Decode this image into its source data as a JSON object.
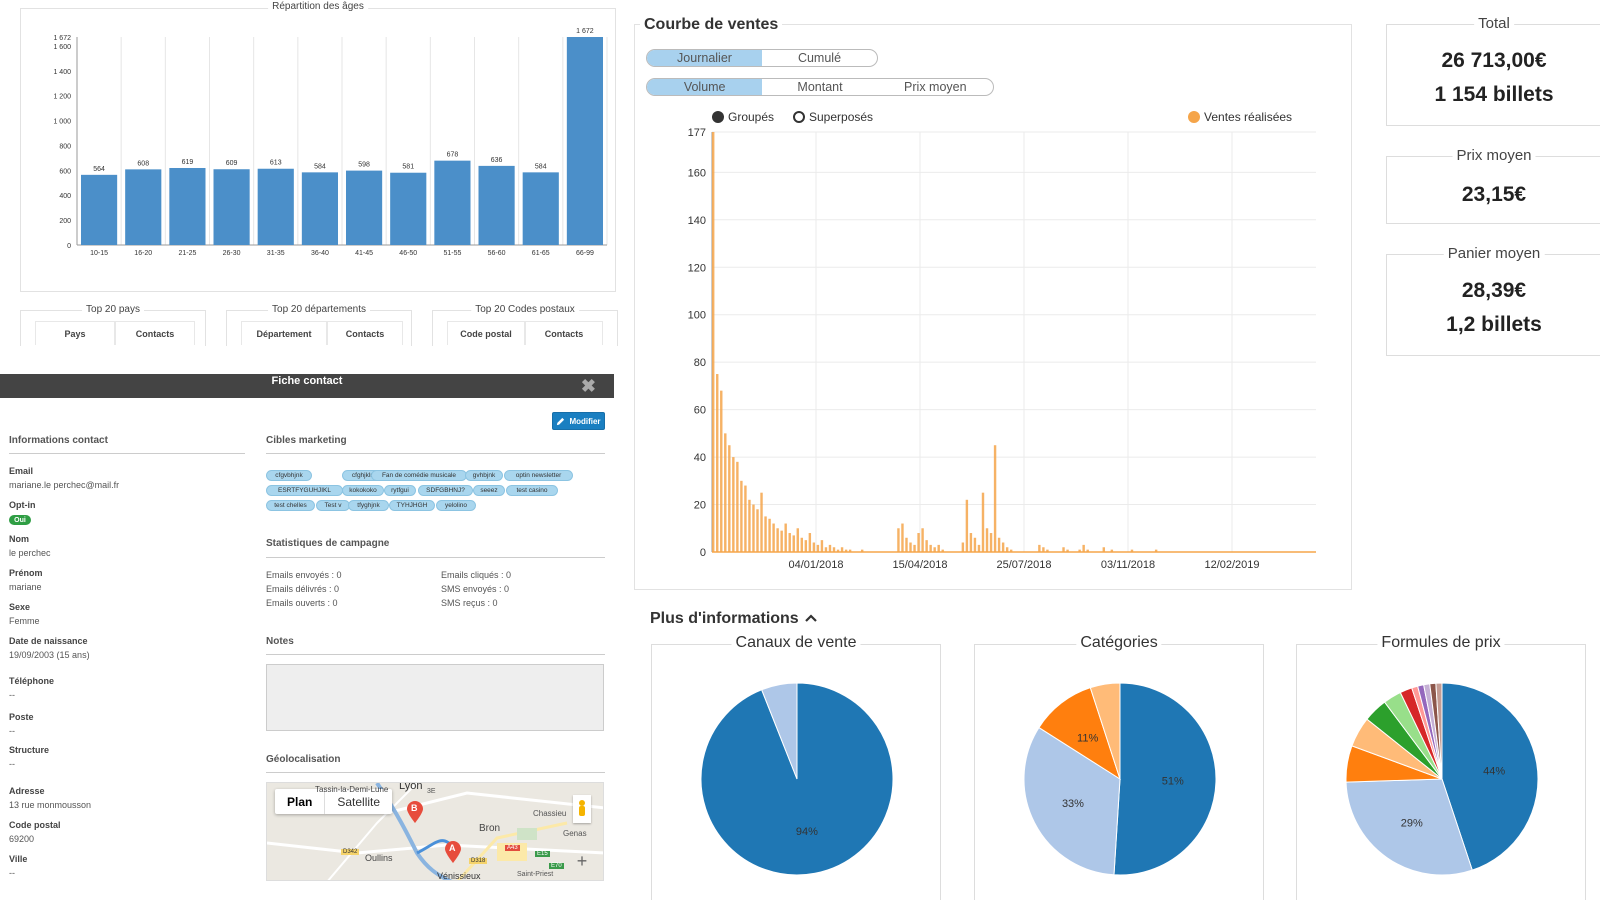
{
  "age_chart": {
    "title": "Répartition des âges",
    "y_ticks": [
      "0",
      "200",
      "400",
      "600",
      "800",
      "1 000",
      "1 200",
      "1 400",
      "1 600",
      "1 672"
    ],
    "chart_data": {
      "type": "bar",
      "title": "Répartition des âges",
      "categories": [
        "10-15",
        "16-20",
        "21-25",
        "26-30",
        "31-35",
        "36-40",
        "41-45",
        "46-50",
        "51-55",
        "56-60",
        "61-65",
        "66-99"
      ],
      "values": [
        564,
        608,
        619,
        609,
        613,
        584,
        598,
        581,
        678,
        636,
        584,
        1672
      ],
      "value_labels": [
        "564",
        "608",
        "619",
        "609",
        "613",
        "584",
        "598",
        "581",
        "678",
        "636",
        "584",
        "1 672"
      ],
      "ylim": [
        0,
        1672
      ],
      "color": "#4b8fc9"
    }
  },
  "top_boxes": [
    {
      "title": "Top 20 pays",
      "col1": "Pays",
      "col2": "Contacts"
    },
    {
      "title": "Top 20 départements",
      "col1": "Département",
      "col2": "Contacts"
    },
    {
      "title": "Top 20 Codes postaux",
      "col1": "Code postal",
      "col2": "Contacts"
    }
  ],
  "contact": {
    "header": "Fiche contact",
    "close_icon": "✖",
    "modify_label": "Modifier",
    "info_title": "Informations contact",
    "fields": [
      {
        "label": "Email",
        "value": "mariane.le perchec@mail.fr"
      },
      {
        "label": "Opt-in",
        "value": ""
      },
      {
        "label": "Nom",
        "value": "le perchec"
      },
      {
        "label": "Prénom",
        "value": "mariane"
      },
      {
        "label": "Sexe",
        "value": "Femme"
      },
      {
        "label": "Date de naissance",
        "value": "19/09/2003 (15 ans)"
      },
      {
        "label": "Téléphone",
        "value": "--"
      },
      {
        "label": "Poste",
        "value": "--"
      },
      {
        "label": "Structure",
        "value": "--"
      },
      {
        "label": "Adresse",
        "value": "13 rue monmousson"
      },
      {
        "label": "Code postal",
        "value": "69200"
      },
      {
        "label": "Ville",
        "value": "--"
      }
    ],
    "optin_badge": "Oui",
    "targets_title": "Cibles marketing",
    "tags": [
      "cfgvbhjnk",
      "cfghjklmlkjhg",
      "Fan de comédie musicale",
      "gvhbjnk",
      "optin newsletter",
      "ESRTFYGUHJIKL",
      "kokokoko",
      "rytfgui",
      "SDFGBHNJ?",
      "seeez",
      "test casino",
      "test chelles",
      "Test v",
      "tfyghjnk",
      "TYHJHGH",
      "yelolino"
    ],
    "stats_title": "Statistiques de campagne",
    "stats_left": [
      "Emails envoyés : 0",
      "Emails délivrés : 0",
      "Emails ouverts : 0"
    ],
    "stats_right": [
      "Emails cliqués : 0",
      "SMS envoyés : 0",
      "SMS reçus : 0"
    ],
    "notes_title": "Notes",
    "geo_title": "Géolocalisation",
    "map": {
      "plan_label": "Plan",
      "satellite_label": "Satellite",
      "labels": [
        "Tassin-la-Demi-Lune",
        "Lyon",
        "3E",
        "Chassieu",
        "Bron",
        "Genas",
        "Oullins",
        "Vénissieux",
        "Saint-Priest",
        "D342",
        "D318",
        "A43",
        "E15",
        "E70"
      ],
      "marker_a": "A",
      "marker_b": "B",
      "zoom_in": "+"
    }
  },
  "sales": {
    "title": "Courbe de ventes",
    "mode_options": [
      "Journalier",
      "Cumulé"
    ],
    "mode_active": "Journalier",
    "metric_options": [
      "Volume",
      "Montant",
      "Prix moyen"
    ],
    "metric_active": "Volume",
    "legend_grouped": "Groupés",
    "legend_superposed": "Superposés",
    "legend_sales": "Ventes réalisées",
    "chart_data": {
      "type": "bar",
      "series": [
        {
          "name": "Ventes réalisées",
          "color": "#f5a54a"
        }
      ],
      "y_ticks": [
        0,
        20,
        40,
        60,
        80,
        100,
        120,
        140,
        160,
        177
      ],
      "ylim": [
        0,
        177
      ],
      "x_ticks": [
        "04/01/2018",
        "15/04/2018",
        "25/07/2018",
        "03/11/2018",
        "12/02/2019"
      ],
      "values": [
        177,
        75,
        68,
        50,
        45,
        40,
        38,
        30,
        28,
        22,
        20,
        18,
        25,
        15,
        14,
        12,
        10,
        9,
        12,
        8,
        7,
        10,
        6,
        5,
        8,
        4,
        3,
        5,
        2,
        3,
        2,
        1,
        2,
        1,
        1,
        0,
        0,
        1,
        0,
        0,
        0,
        0,
        0,
        0,
        0,
        0,
        10,
        12,
        6,
        4,
        3,
        8,
        10,
        5,
        3,
        2,
        3,
        1,
        0,
        0,
        0,
        0,
        4,
        22,
        8,
        6,
        3,
        25,
        10,
        8,
        45,
        6,
        4,
        2,
        1,
        0,
        0,
        0,
        0,
        0,
        0,
        3,
        2,
        1,
        0,
        0,
        0,
        2,
        1,
        0,
        0,
        1,
        3,
        1,
        0,
        0,
        0,
        2,
        0,
        1,
        0,
        0,
        0,
        0,
        1,
        0,
        0,
        0,
        0,
        0,
        1,
        0,
        0,
        0,
        0,
        0,
        0,
        0,
        0,
        0,
        0,
        0,
        0,
        0,
        0,
        0,
        0,
        0,
        0,
        0,
        0,
        0,
        0,
        0,
        0,
        0,
        0,
        0,
        0,
        0,
        0,
        0,
        0,
        0,
        0,
        0,
        0,
        0,
        0,
        0
      ]
    }
  },
  "kpis": {
    "total_title": "Total",
    "total_amount": "26 713,00€",
    "total_tickets": "1 154 billets",
    "avg_price_title": "Prix moyen",
    "avg_price": "23,15€",
    "basket_title": "Panier moyen",
    "basket_amount": "28,39€",
    "basket_tickets": "1,2 billets"
  },
  "more_info": {
    "title": "Plus d'informations",
    "chevron_icon": "chevron-up-icon",
    "pies": [
      {
        "title": "Canaux de vente",
        "chart_data": {
          "type": "pie",
          "values": [
            94,
            6
          ],
          "labels": [
            "94%",
            ""
          ],
          "colors": [
            "#1f77b4",
            "#aec7e8"
          ]
        }
      },
      {
        "title": "Catégories",
        "chart_data": {
          "type": "pie",
          "values": [
            51,
            33,
            11,
            5
          ],
          "labels": [
            "51%",
            "33%",
            "11%",
            ""
          ],
          "colors": [
            "#1f77b4",
            "#aec7e8",
            "#ff7f0e",
            "#ffbb78"
          ]
        }
      },
      {
        "title": "Formules de prix",
        "chart_data": {
          "type": "pie",
          "values": [
            44,
            29,
            6,
            5,
            4,
            3,
            2,
            1,
            1,
            1,
            1,
            1
          ],
          "labels": [
            "44%",
            "29%",
            "",
            "",
            "",
            "",
            "",
            "",
            "",
            "",
            "",
            ""
          ],
          "colors": [
            "#1f77b4",
            "#aec7e8",
            "#ff7f0e",
            "#ffbb78",
            "#2ca02c",
            "#98df8a",
            "#d62728",
            "#ff9896",
            "#9467bd",
            "#c5b0d5",
            "#8c564b",
            "#c49c94"
          ]
        }
      }
    ]
  }
}
